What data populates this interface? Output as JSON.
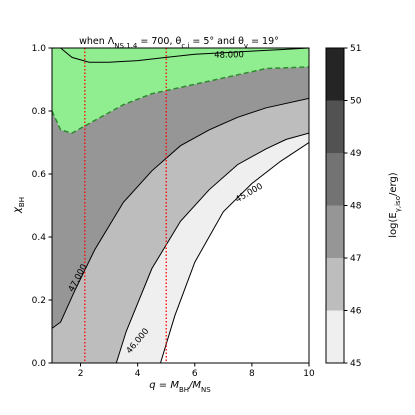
{
  "chart_data": {
    "type": "contour",
    "title": "when Λ_{NS,1.4} = 700, θ_{c,j} = 5° and θ_v = 19°",
    "title_parts": {
      "t1": "when Λ",
      "t1_sub": "NS,1.4",
      "t2": " = 700, θ",
      "t2_sub": "c,j",
      "t3": " = 5° and θ",
      "t3_sub": "v",
      "t4": " = 19°"
    },
    "xlabel_parts": {
      "a": "q = M",
      "a_sub": "BH",
      "b": "/M",
      "b_sub": "NS"
    },
    "ylabel_parts": {
      "a": "χ",
      "a_sub": "BH"
    },
    "colorbar_label_parts": {
      "a": "log(E",
      "a_sub": "γ,iso",
      "b": "/erg)"
    },
    "xlim": [
      1,
      10
    ],
    "ylim": [
      0,
      1
    ],
    "x_ticks": [
      2,
      4,
      6,
      8,
      10
    ],
    "y_ticks": [
      0.0,
      0.2,
      0.4,
      0.6,
      0.8,
      1.0
    ],
    "y_tick_labels": [
      "0.0",
      "0.2",
      "0.4",
      "0.6",
      "0.8",
      "1.0"
    ],
    "colorbar": {
      "levels": [
        45,
        46,
        47,
        48,
        49,
        50,
        51
      ],
      "tick_labels": [
        "45",
        "46",
        "47",
        "48",
        "49",
        "50",
        "51"
      ],
      "colors": [
        "#efefef",
        "#bdbdbd",
        "#969696",
        "#737373",
        "#525252",
        "#252525"
      ]
    },
    "fill_colors": {
      "white": "#ffffff",
      "band_45_46": "#efefef",
      "band_46_47": "#bdbdbd",
      "band_47_48": "#969696",
      "green_region": "#90ee90"
    },
    "boundaries": {
      "b45": [
        [
          4.8,
          0.0
        ],
        [
          5.3,
          0.15
        ],
        [
          6.0,
          0.32
        ],
        [
          7.0,
          0.48
        ],
        [
          8.0,
          0.57
        ],
        [
          9.0,
          0.64
        ],
        [
          10.0,
          0.7
        ]
      ],
      "b46": [
        [
          3.25,
          0.0
        ],
        [
          3.6,
          0.1
        ],
        [
          4.5,
          0.3
        ],
        [
          5.5,
          0.45
        ],
        [
          6.5,
          0.55
        ],
        [
          7.5,
          0.63
        ],
        [
          8.5,
          0.68
        ],
        [
          9.2,
          0.71
        ],
        [
          10.0,
          0.73
        ]
      ],
      "b47": [
        [
          1.0,
          0.11
        ],
        [
          1.3,
          0.13
        ],
        [
          1.8,
          0.23
        ],
        [
          2.5,
          0.36
        ],
        [
          3.5,
          0.51
        ],
        [
          4.5,
          0.61
        ],
        [
          5.5,
          0.69
        ],
        [
          6.5,
          0.74
        ],
        [
          7.5,
          0.78
        ],
        [
          8.5,
          0.81
        ],
        [
          10.0,
          0.84
        ]
      ],
      "green_dashed": [
        [
          1.0,
          0.8
        ],
        [
          1.3,
          0.74
        ],
        [
          1.7,
          0.73
        ],
        [
          2.5,
          0.77
        ],
        [
          3.5,
          0.82
        ],
        [
          4.5,
          0.855
        ],
        [
          5.5,
          0.875
        ],
        [
          6.5,
          0.895
        ],
        [
          7.5,
          0.915
        ],
        [
          8.5,
          0.935
        ],
        [
          10.0,
          0.94
        ]
      ],
      "b48": [
        [
          1.3,
          1.0
        ],
        [
          1.7,
          0.97
        ],
        [
          2.3,
          0.955
        ],
        [
          3.0,
          0.955
        ],
        [
          4.0,
          0.96
        ],
        [
          5.0,
          0.97
        ],
        [
          6.0,
          0.98
        ],
        [
          7.0,
          0.985
        ],
        [
          8.0,
          0.99
        ],
        [
          9.0,
          0.995
        ],
        [
          10.0,
          1.0
        ]
      ]
    },
    "contour_labels": [
      {
        "text": "48.000",
        "x": 7.2,
        "y": 0.978,
        "angle": -1
      },
      {
        "text": "47.000",
        "x": 1.9,
        "y": 0.27,
        "angle": -62
      },
      {
        "text": "46.000",
        "x": 4.0,
        "y": 0.07,
        "angle": -50
      },
      {
        "text": "45.000",
        "x": 7.9,
        "y": 0.54,
        "angle": -30
      }
    ],
    "vertical_lines": [
      {
        "x": 2.15,
        "color": "#ff0000",
        "style": "dotted"
      },
      {
        "x": 5.0,
        "color": "#ff0000",
        "style": "dotted"
      }
    ]
  }
}
